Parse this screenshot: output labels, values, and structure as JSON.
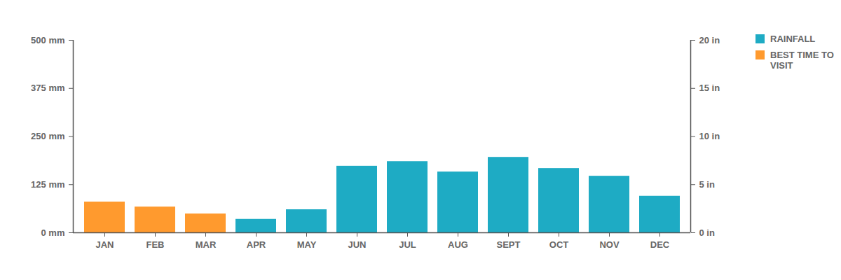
{
  "chart_data": {
    "type": "bar",
    "categories": [
      "JAN",
      "FEB",
      "MAR",
      "APR",
      "MAY",
      "JUN",
      "JUL",
      "AUG",
      "SEPT",
      "OCT",
      "NOV",
      "DEC"
    ],
    "series": [
      {
        "name": "RAINFALL",
        "color": "#1eabc4",
        "values": [
          null,
          null,
          null,
          35,
          60,
          173,
          185,
          158,
          196,
          167,
          147,
          95
        ]
      },
      {
        "name": "BEST TIME TO VISIT",
        "color": "#ff9a2e",
        "values": [
          80,
          67,
          49,
          null,
          null,
          null,
          null,
          null,
          null,
          null,
          null,
          null
        ]
      }
    ],
    "ylim": [
      0,
      500
    ],
    "yticks": [
      {
        "value": 0,
        "label": "0 mm"
      },
      {
        "value": 125,
        "label": "125 mm"
      },
      {
        "value": 250,
        "label": "250 mm"
      },
      {
        "value": 375,
        "label": "375 mm"
      },
      {
        "value": 500,
        "label": "500 mm"
      }
    ],
    "y2lim": [
      0,
      20
    ],
    "y2ticks": [
      {
        "value": 0,
        "label": "0 in"
      },
      {
        "value": 5,
        "label": "5 in"
      },
      {
        "value": 10,
        "label": "10 in"
      },
      {
        "value": 15,
        "label": "15 in"
      },
      {
        "value": 20,
        "label": "20 in"
      }
    ],
    "grid": false,
    "legend": "right"
  }
}
